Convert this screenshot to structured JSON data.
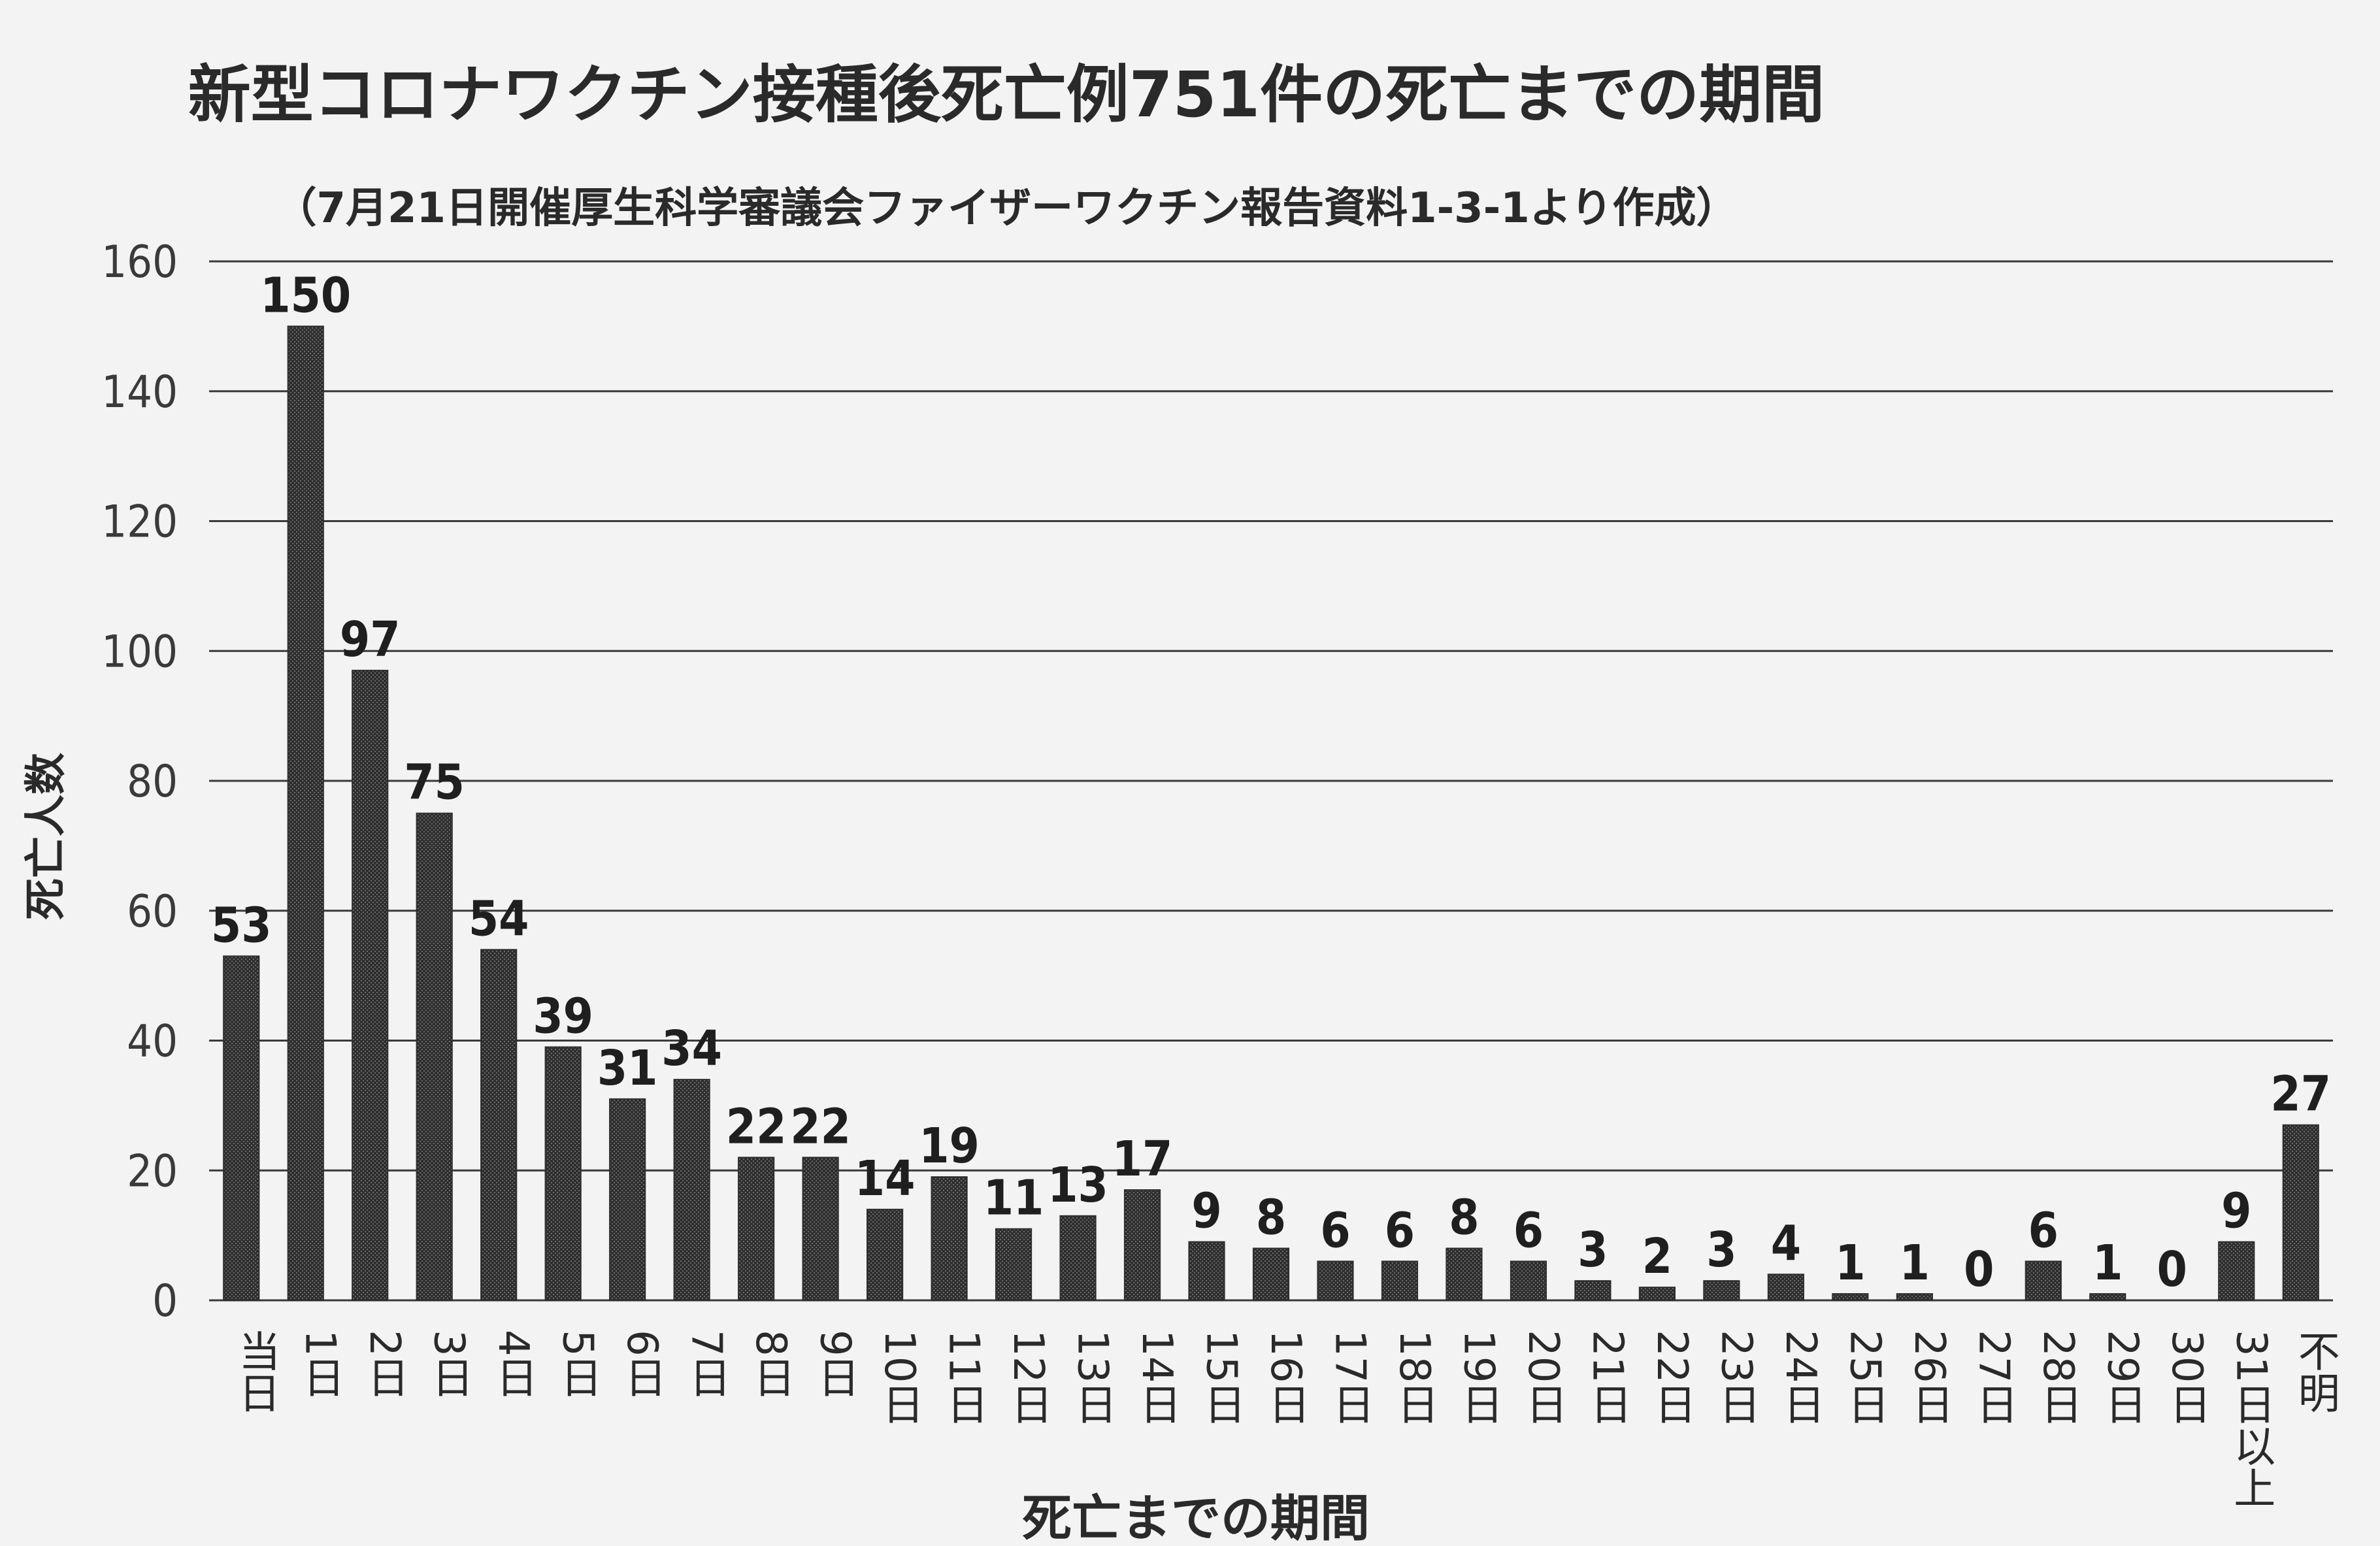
{
  "chart_data": {
    "type": "bar",
    "title": "新型コロナワクチン接種後死亡例751件の死亡までの期間",
    "subtitle": "（7月21日開催厚生科学審議会ファイザーワクチン報告資料1-3-1より作成）",
    "xlabel": "死亡までの期間",
    "ylabel": "死亡人数",
    "ylim": [
      0,
      160
    ],
    "yticks": [
      0,
      20,
      40,
      60,
      80,
      100,
      120,
      140,
      160
    ],
    "grid": true,
    "categories": [
      "当日",
      "1日",
      "2日",
      "3日",
      "4日",
      "5日",
      "6日",
      "7日",
      "8日",
      "9日",
      "10日",
      "11日",
      "12日",
      "13日",
      "14日",
      "15日",
      "16日",
      "17日",
      "18日",
      "19日",
      "20日",
      "21日",
      "22日",
      "23日",
      "24日",
      "25日",
      "26日",
      "27日",
      "28日",
      "29日",
      "30日",
      "31日以上",
      "不明"
    ],
    "values": [
      53,
      150,
      97,
      75,
      54,
      39,
      31,
      34,
      22,
      22,
      14,
      19,
      11,
      13,
      17,
      9,
      8,
      6,
      6,
      8,
      6,
      3,
      2,
      3,
      4,
      1,
      1,
      0,
      6,
      1,
      0,
      9,
      27
    ],
    "colors": {
      "bar": "#2e2e2e",
      "bar_texture": "#6a6a6a",
      "grid": "#3a3a3a",
      "background": "#f3f3f3"
    }
  }
}
